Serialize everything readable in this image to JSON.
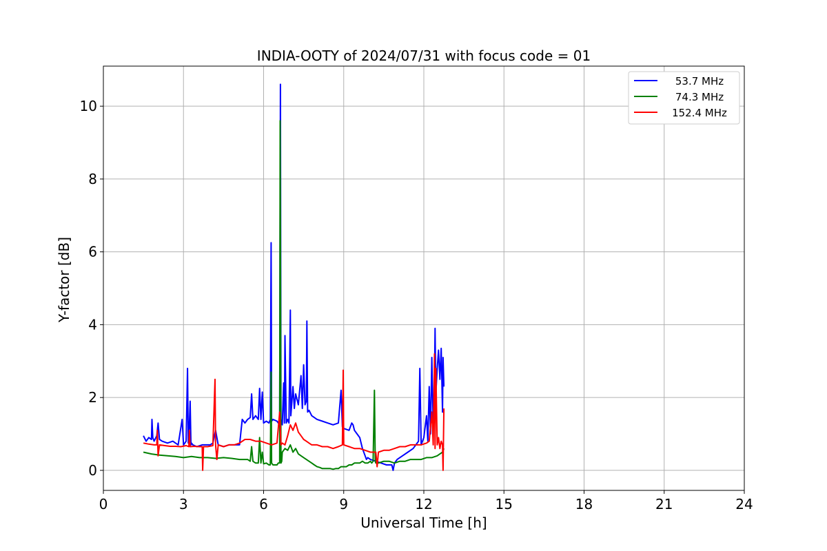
{
  "chart_data": {
    "type": "line",
    "title": "INDIA-OOTY of 2024/07/31 with focus code = 01",
    "xlabel": "Universal Time [h]",
    "ylabel": "Y-factor [dB]",
    "xlim": [
      0,
      24
    ],
    "ylim": [
      -0.55,
      11.1
    ],
    "xticks": [
      0,
      3,
      6,
      9,
      12,
      15,
      18,
      21,
      24
    ],
    "yticks": [
      0,
      2,
      4,
      6,
      8,
      10
    ],
    "grid": true,
    "legend_position": "top-right",
    "series": [
      {
        "name": "53.7 MHz",
        "color": "#0000ff",
        "x": [
          1.5,
          1.6,
          1.7,
          1.8,
          1.82,
          1.85,
          1.9,
          2.0,
          2.05,
          2.1,
          2.2,
          2.4,
          2.6,
          2.8,
          2.95,
          3.0,
          3.05,
          3.1,
          3.15,
          3.18,
          3.2,
          3.25,
          3.28,
          3.3,
          3.35,
          3.5,
          3.7,
          3.9,
          4.0,
          4.1,
          4.2,
          4.3,
          4.5,
          4.7,
          4.9,
          5.1,
          5.2,
          5.25,
          5.3,
          5.4,
          5.5,
          5.55,
          5.6,
          5.7,
          5.8,
          5.85,
          5.9,
          5.95,
          6.0,
          6.1,
          6.2,
          6.25,
          6.28,
          6.3,
          6.35,
          6.5,
          6.55,
          6.6,
          6.63,
          6.65,
          6.68,
          6.7,
          6.75,
          6.78,
          6.8,
          6.85,
          6.9,
          6.95,
          7.0,
          7.02,
          7.05,
          7.1,
          7.15,
          7.2,
          7.3,
          7.4,
          7.45,
          7.5,
          7.55,
          7.6,
          7.62,
          7.65,
          7.7,
          7.8,
          8.0,
          8.2,
          8.4,
          8.6,
          8.8,
          8.9,
          8.95,
          9.0,
          9.2,
          9.3,
          9.35,
          9.4,
          9.5,
          9.6,
          9.7,
          9.8,
          9.85,
          9.9,
          10.0,
          10.2,
          10.4,
          10.6,
          10.8,
          10.85,
          10.9,
          11.0,
          11.2,
          11.4,
          11.6,
          11.8,
          11.85,
          11.9,
          12.0,
          12.1,
          12.15,
          12.2,
          12.25,
          12.3,
          12.35,
          12.4,
          12.42,
          12.45,
          12.5,
          12.55,
          12.6,
          12.65,
          12.7,
          12.72,
          12.75
        ],
        "y": [
          0.95,
          0.8,
          0.9,
          0.85,
          1.4,
          0.9,
          0.8,
          0.95,
          1.3,
          0.85,
          0.8,
          0.75,
          0.8,
          0.7,
          1.4,
          0.7,
          0.75,
          0.8,
          2.8,
          0.75,
          0.8,
          1.9,
          0.7,
          0.75,
          0.7,
          0.65,
          0.7,
          0.7,
          0.7,
          0.75,
          1.1,
          0.7,
          0.65,
          0.7,
          0.7,
          0.7,
          1.4,
          1.35,
          1.3,
          1.4,
          1.45,
          2.1,
          1.4,
          1.5,
          1.4,
          2.25,
          1.4,
          2.15,
          1.3,
          1.35,
          1.3,
          1.4,
          6.25,
          1.35,
          1.4,
          1.35,
          1.3,
          1.4,
          10.6,
          1.4,
          1.3,
          1.25,
          2.4,
          1.3,
          3.7,
          1.3,
          1.4,
          1.3,
          4.4,
          1.5,
          1.8,
          2.3,
          1.7,
          2.1,
          1.8,
          2.6,
          1.7,
          2.9,
          1.8,
          1.9,
          4.1,
          1.6,
          1.65,
          1.5,
          1.4,
          1.35,
          1.3,
          1.25,
          1.3,
          2.2,
          1.2,
          1.15,
          1.1,
          1.3,
          1.25,
          1.1,
          1.0,
          0.9,
          0.6,
          0.4,
          0.3,
          0.35,
          0.3,
          0.25,
          0.2,
          0.15,
          0.15,
          0.0,
          0.2,
          0.3,
          0.4,
          0.5,
          0.6,
          0.8,
          2.8,
          0.7,
          0.9,
          1.5,
          0.8,
          2.3,
          1.0,
          3.1,
          1.2,
          2.5,
          3.9,
          2.1,
          2.8,
          3.3,
          2.5,
          3.35,
          1.6,
          3.1,
          2.3
        ]
      },
      {
        "name": "74.3 MHz",
        "color": "#008000",
        "x": [
          1.5,
          1.8,
          2.1,
          2.4,
          2.7,
          3.0,
          3.3,
          3.6,
          3.9,
          4.2,
          4.5,
          4.8,
          5.1,
          5.4,
          5.5,
          5.55,
          5.6,
          5.7,
          5.8,
          5.85,
          5.9,
          5.95,
          6.0,
          6.1,
          6.2,
          6.25,
          6.28,
          6.3,
          6.35,
          6.4,
          6.5,
          6.55,
          6.6,
          6.62,
          6.65,
          6.68,
          6.7,
          6.8,
          6.9,
          7.0,
          7.1,
          7.2,
          7.3,
          7.4,
          7.5,
          7.6,
          7.7,
          7.8,
          7.9,
          8.0,
          8.1,
          8.2,
          8.3,
          8.4,
          8.5,
          8.6,
          8.7,
          8.8,
          8.9,
          9.0,
          9.1,
          9.2,
          9.3,
          9.4,
          9.5,
          9.6,
          9.7,
          9.8,
          9.9,
          10.0,
          10.05,
          10.1,
          10.15,
          10.18,
          10.2,
          10.3,
          10.5,
          10.7,
          10.9,
          11.1,
          11.3,
          11.5,
          11.7,
          11.9,
          12.1,
          12.3,
          12.5,
          12.6,
          12.7,
          12.75
        ],
        "y": [
          0.5,
          0.45,
          0.42,
          0.4,
          0.38,
          0.35,
          0.38,
          0.35,
          0.35,
          0.33,
          0.35,
          0.33,
          0.3,
          0.3,
          0.25,
          0.65,
          0.25,
          0.2,
          0.2,
          0.9,
          0.2,
          0.5,
          0.18,
          0.2,
          0.15,
          0.15,
          2.7,
          0.2,
          0.15,
          0.15,
          0.15,
          0.2,
          0.2,
          9.6,
          0.2,
          0.25,
          0.5,
          0.6,
          0.55,
          0.7,
          0.5,
          0.6,
          0.45,
          0.4,
          0.35,
          0.3,
          0.25,
          0.2,
          0.15,
          0.1,
          0.08,
          0.05,
          0.05,
          0.05,
          0.05,
          0.03,
          0.05,
          0.05,
          0.1,
          0.1,
          0.1,
          0.15,
          0.15,
          0.2,
          0.2,
          0.2,
          0.25,
          0.2,
          0.2,
          0.25,
          0.2,
          0.25,
          2.2,
          0.25,
          0.2,
          0.2,
          0.25,
          0.25,
          0.2,
          0.25,
          0.25,
          0.3,
          0.3,
          0.3,
          0.35,
          0.35,
          0.4,
          0.45,
          0.5,
          0.6
        ]
      },
      {
        "name": "152.4 MHz",
        "color": "#ff0000",
        "x": [
          1.5,
          1.7,
          1.9,
          2.0,
          2.02,
          2.05,
          2.1,
          2.3,
          2.5,
          2.7,
          2.9,
          3.1,
          3.2,
          3.22,
          3.25,
          3.4,
          3.6,
          3.7,
          3.72,
          3.75,
          3.9,
          4.1,
          4.18,
          4.2,
          4.25,
          4.3,
          4.5,
          4.7,
          4.9,
          5.1,
          5.3,
          5.5,
          5.7,
          5.9,
          6.1,
          6.3,
          6.5,
          6.6,
          6.65,
          6.7,
          6.8,
          6.9,
          7.0,
          7.1,
          7.2,
          7.3,
          7.4,
          7.5,
          7.6,
          7.7,
          7.8,
          8.0,
          8.2,
          8.4,
          8.6,
          8.8,
          8.95,
          8.98,
          9.0,
          9.2,
          9.4,
          9.6,
          9.8,
          10.0,
          10.2,
          10.25,
          10.3,
          10.5,
          10.7,
          10.9,
          11.1,
          11.3,
          11.5,
          11.7,
          11.9,
          12.1,
          12.2,
          12.3,
          12.35,
          12.4,
          12.42,
          12.45,
          12.5,
          12.55,
          12.6,
          12.65,
          12.7,
          12.72,
          12.75
        ],
        "y": [
          0.75,
          0.72,
          0.7,
          0.7,
          1.1,
          0.4,
          0.7,
          0.68,
          0.66,
          0.66,
          0.65,
          0.68,
          0.65,
          1.1,
          0.65,
          0.66,
          0.65,
          0.65,
          0.0,
          0.65,
          0.65,
          0.68,
          2.5,
          0.7,
          0.3,
          0.7,
          0.65,
          0.7,
          0.7,
          0.75,
          0.85,
          0.85,
          0.8,
          0.8,
          0.75,
          0.7,
          0.75,
          1.6,
          0.7,
          0.75,
          0.7,
          0.95,
          1.25,
          1.1,
          1.3,
          1.05,
          0.95,
          0.85,
          0.8,
          0.75,
          0.7,
          0.7,
          0.65,
          0.65,
          0.6,
          0.65,
          0.7,
          2.75,
          0.7,
          0.65,
          0.6,
          0.6,
          0.55,
          0.5,
          0.5,
          0.1,
          0.5,
          0.55,
          0.55,
          0.6,
          0.65,
          0.65,
          0.7,
          0.7,
          0.7,
          0.75,
          0.8,
          1.6,
          0.7,
          3.2,
          0.6,
          2.8,
          0.7,
          0.9,
          0.6,
          0.8,
          0.7,
          0.0,
          1.7
        ]
      }
    ]
  }
}
